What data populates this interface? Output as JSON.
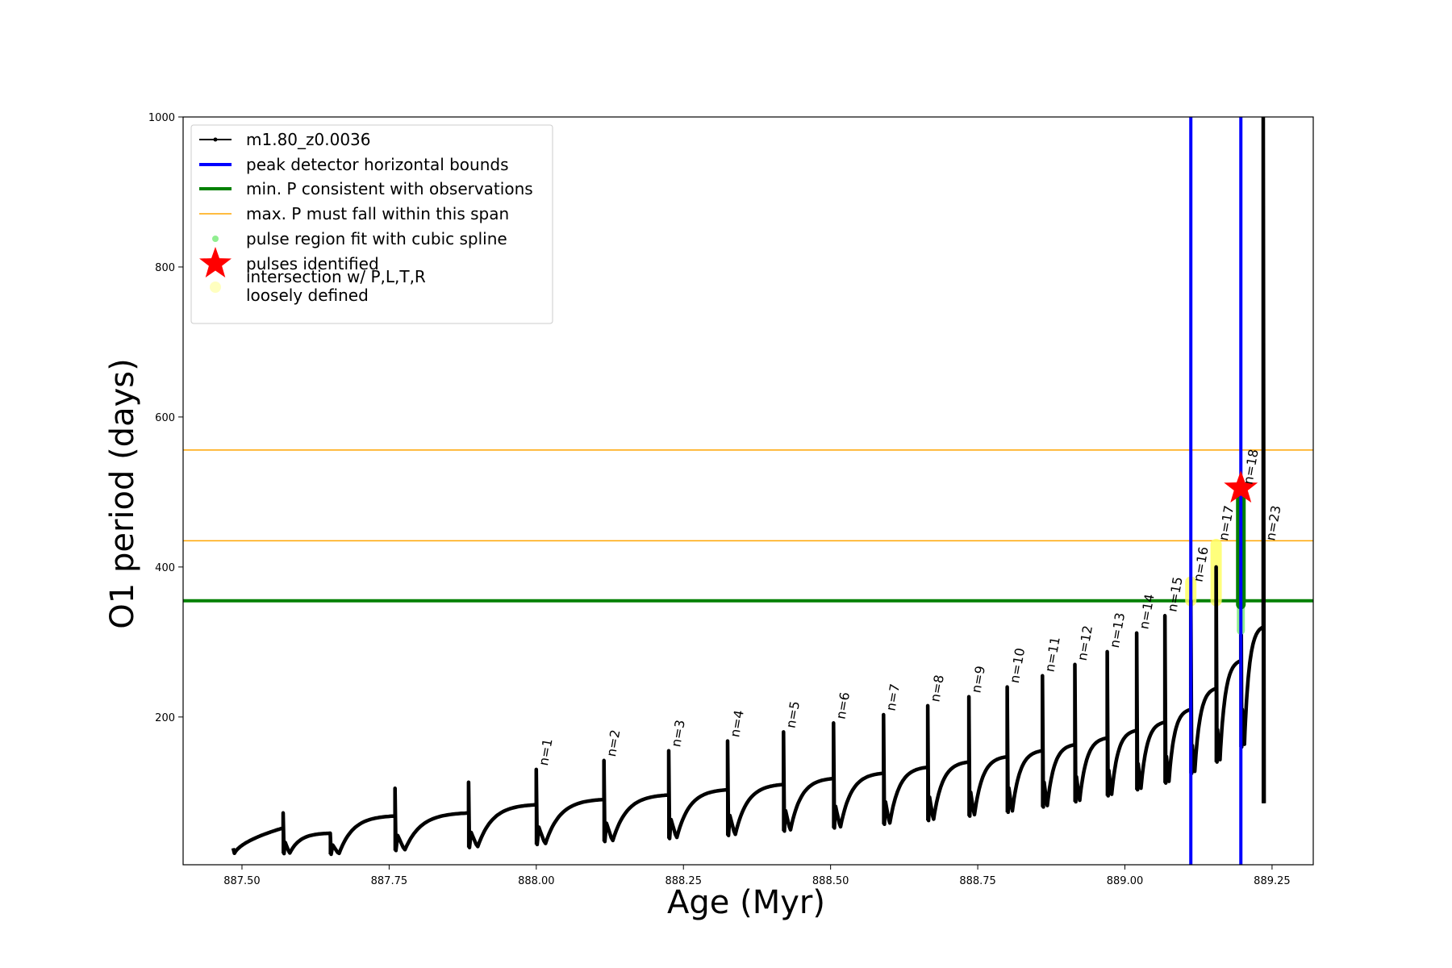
{
  "chart_data": {
    "type": "line",
    "xlabel": "Age (Myr)",
    "ylabel": "O1 period (days)",
    "xlim": [
      887.4,
      889.32
    ],
    "ylim": [
      3,
      1000
    ],
    "x_ticks": [
      887.5,
      887.75,
      888.0,
      888.25,
      888.5,
      888.75,
      889.0,
      889.25
    ],
    "x_tick_labels": [
      "887.50",
      "887.75",
      "888.00",
      "888.25",
      "888.50",
      "888.75",
      "889.00",
      "889.25"
    ],
    "y_ticks": [
      200,
      400,
      600,
      800,
      1000
    ],
    "y_tick_labels": [
      "200",
      "400",
      "600",
      "800",
      "1000"
    ],
    "grid": false,
    "legend_position": "top-left",
    "legend": [
      {
        "label": "m1.80_z0.0036",
        "style": "line-marker",
        "color": "#000000"
      },
      {
        "label": "peak detector horizontal bounds",
        "style": "line",
        "color": "#0000ff"
      },
      {
        "label": "min. P consistent with observations",
        "style": "line",
        "color": "#008000"
      },
      {
        "label": "max. P must fall within this span",
        "style": "thin-line",
        "color": "#ffa500"
      },
      {
        "label": "pulse region fit with cubic spline",
        "style": "dot",
        "color": "#90ee90"
      },
      {
        "label": "pulses identified",
        "style": "star",
        "color": "#ff0000"
      },
      {
        "label": "intersection w/ P,L,T,R",
        "label2": "loosely defined",
        "style": "dot",
        "color": "#ffffc0"
      }
    ],
    "series": [
      {
        "name": "m1.80_z0.0036",
        "color": "#000000",
        "start": [
          887.485,
          12,
          25
        ],
        "cycles": [
          {
            "t": 887.57,
            "a": 52,
            "d": 18
          },
          {
            "t": 887.65,
            "a": 45,
            "d": 17
          },
          {
            "t": 887.76,
            "a": 68,
            "d": 22
          },
          {
            "t": 887.885,
            "a": 72,
            "d": 26
          },
          {
            "t": 888.0,
            "a": 83,
            "d": 30
          },
          {
            "t": 888.115,
            "a": 90,
            "d": 34
          },
          {
            "t": 888.225,
            "a": 96,
            "d": 38
          },
          {
            "t": 888.325,
            "a": 103,
            "d": 42
          },
          {
            "t": 888.42,
            "a": 110,
            "d": 48
          },
          {
            "t": 888.505,
            "a": 118,
            "d": 52
          },
          {
            "t": 888.59,
            "a": 125,
            "d": 57
          },
          {
            "t": 888.665,
            "a": 133,
            "d": 62
          },
          {
            "t": 888.735,
            "a": 140,
            "d": 68
          },
          {
            "t": 888.8,
            "a": 147,
            "d": 73
          },
          {
            "t": 888.86,
            "a": 155,
            "d": 80
          },
          {
            "t": 888.915,
            "a": 163,
            "d": 87
          },
          {
            "t": 888.97,
            "a": 172,
            "d": 95
          },
          {
            "t": 889.02,
            "a": 182,
            "d": 103
          },
          {
            "t": 889.068,
            "a": 193,
            "d": 112
          },
          {
            "t": 889.112,
            "a": 210,
            "d": 125
          },
          {
            "t": 889.155,
            "a": 238,
            "d": 140
          },
          {
            "t": 889.197,
            "a": 275,
            "d": 160
          },
          {
            "t": 889.235,
            "a": 320,
            "d": 85
          }
        ],
        "peaks": [
          [
            887.57,
            72
          ],
          [
            887.65,
            45
          ],
          [
            887.76,
            105
          ],
          [
            887.885,
            113
          ],
          [
            888.0,
            130
          ],
          [
            888.115,
            142
          ],
          [
            888.225,
            155
          ],
          [
            888.325,
            168
          ],
          [
            888.42,
            180
          ],
          [
            888.505,
            192
          ],
          [
            888.59,
            203
          ],
          [
            888.665,
            215
          ],
          [
            888.735,
            227
          ],
          [
            888.8,
            240
          ],
          [
            888.86,
            255
          ],
          [
            888.915,
            270
          ],
          [
            888.97,
            287
          ],
          [
            889.02,
            312
          ],
          [
            889.068,
            335
          ],
          [
            889.112,
            355
          ],
          [
            889.155,
            400
          ],
          [
            889.197,
            480
          ],
          [
            889.235,
            1000
          ]
        ]
      }
    ],
    "pulse_labels": [
      {
        "text": "n=1",
        "x": 888.0,
        "y": 130
      },
      {
        "text": "n=2",
        "x": 888.115,
        "y": 142
      },
      {
        "text": "n=3",
        "x": 888.225,
        "y": 155
      },
      {
        "text": "n=4",
        "x": 888.325,
        "y": 168
      },
      {
        "text": "n=5",
        "x": 888.42,
        "y": 180
      },
      {
        "text": "n=6",
        "x": 888.505,
        "y": 192
      },
      {
        "text": "n=7",
        "x": 888.59,
        "y": 203
      },
      {
        "text": "n=8",
        "x": 888.665,
        "y": 215
      },
      {
        "text": "n=9",
        "x": 888.735,
        "y": 227
      },
      {
        "text": "n=10",
        "x": 888.8,
        "y": 240
      },
      {
        "text": "n=11",
        "x": 888.86,
        "y": 255
      },
      {
        "text": "n=12",
        "x": 888.915,
        "y": 270
      },
      {
        "text": "n=13",
        "x": 888.97,
        "y": 287
      },
      {
        "text": "n=14",
        "x": 889.02,
        "y": 312
      },
      {
        "text": "n=15",
        "x": 889.068,
        "y": 335
      },
      {
        "text": "n=16",
        "x": 889.112,
        "y": 375
      },
      {
        "text": "n=17",
        "x": 889.155,
        "y": 430
      },
      {
        "text": "n=18",
        "x": 889.197,
        "y": 505
      },
      {
        "text": "n=23",
        "x": 889.235,
        "y": 430
      }
    ],
    "vertical_lines": {
      "color": "#0000ff",
      "x": [
        889.112,
        889.197
      ]
    },
    "min_period_line": {
      "color": "#008000",
      "y": 355
    },
    "max_period_span": {
      "color": "#ffa500",
      "y": [
        435,
        556
      ]
    },
    "spline_region": {
      "color": "#90ee90",
      "x": 889.197,
      "y_range": [
        315,
        500
      ]
    },
    "fit_region": {
      "color": "#008000",
      "x": 889.197,
      "y_range": [
        350,
        500
      ]
    },
    "loose_regions": [
      {
        "x": 889.112,
        "y_range": [
          355,
          380
        ],
        "color": "#ffff66"
      },
      {
        "x": 889.155,
        "y_range": [
          355,
          430
        ],
        "color": "#ffff66"
      }
    ],
    "pulse_identified": {
      "x": 889.197,
      "y": 505,
      "color": "#ff0000"
    }
  }
}
